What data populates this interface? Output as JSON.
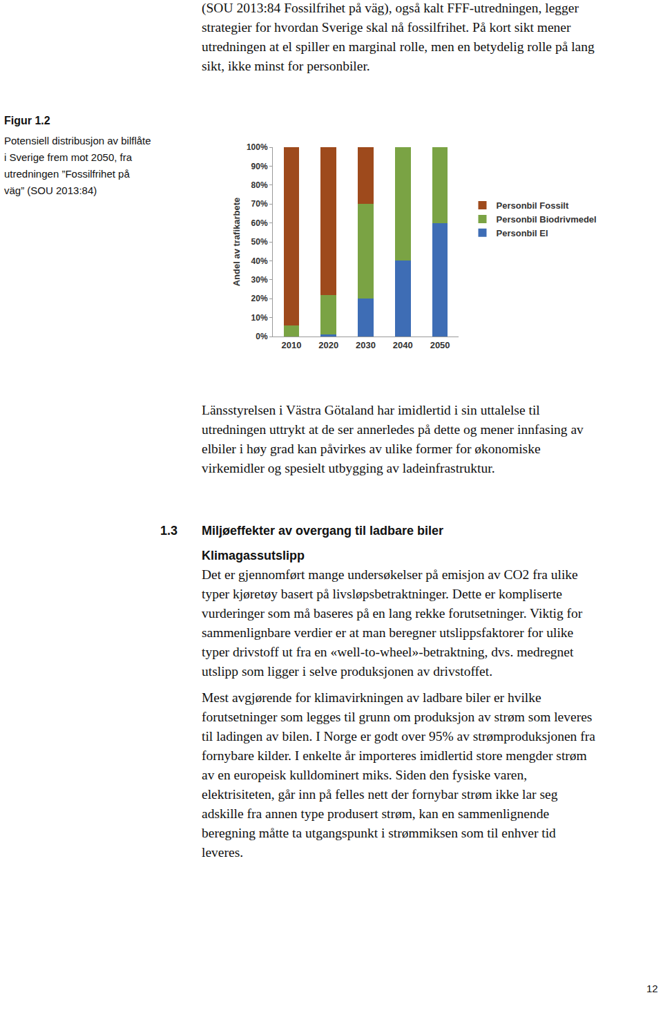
{
  "document": {
    "intro": [
      "(SOU 2013:84 Fossilfrihet på väg), også kalt FFF-utredningen, legger",
      "strategier for hvordan Sverige skal nå fossilfrihet. På kort sikt mener",
      "utredningen at el spiller en marginal rolle, men en betydelig rolle på lang",
      "sikt, ikke minst for personbiler."
    ],
    "figure": {
      "label": "Figur 1.2",
      "caption": [
        "Potensiell distribusjon av bilflåte",
        "i Sverige frem mot 2050, fra",
        "utredningen ”Fossilfrihet på",
        "väg” (SOU 2013:84)"
      ]
    },
    "paragraph": [
      "Länsstyrelsen i Västra Götaland har imidlertid i sin uttalelse til",
      "utredningen uttrykt at de ser annerledes på dette og mener innfasing av",
      "elbiler i høy grad kan påvirkes av ulike former for økonomiske",
      "virkemidler og spesielt utbygging av ladeinfrastruktur."
    ],
    "section": {
      "number": "1.3",
      "title": "Miljøeffekter av overgang til ladbare biler",
      "subheading": "Klimagassutslipp",
      "paragraphs": [
        [
          "Det er gjennomført mange undersøkelser på emisjon av CO2 fra ulike",
          "typer kjøretøy basert på livsløpsbetraktninger. Dette er kompliserte",
          "vurderinger som må baseres på en lang rekke forutsetninger. Viktig for",
          "sammenlignbare verdier er at man beregner utslippsfaktorer for ulike",
          "typer drivstoff ut fra en «well-to-wheel»-betraktning, dvs. medregnet",
          "utslipp som ligger i selve produksjonen av drivstoffet."
        ],
        [
          "Mest avgjørende for klimavirkningen av ladbare biler er hvilke",
          "forutsetninger som legges til grunn om produksjon av strøm som leveres",
          "til ladingen av bilen. I Norge er godt over 95% av strømproduksjonen fra",
          "fornybare kilder. I enkelte år importeres imidlertid store mengder strøm",
          "av en europeisk kulldominert miks. Siden den fysiske varen,",
          "elektrisiteten, går inn på felles nett der fornybar strøm ikke lar seg",
          "adskille fra annen type produsert strøm, kan en sammenlignende",
          "beregning måtte ta utgangspunkt i strømmiksen som til enhver tid",
          "leveres."
        ]
      ]
    },
    "page_number": "12"
  },
  "chart_data": {
    "type": "bar",
    "stacked": true,
    "y_label": "Andel av trafikarbete",
    "categories": [
      "2010",
      "2020",
      "2030",
      "2040",
      "2050"
    ],
    "series": [
      {
        "name": "Personbil El",
        "color": "#3e6db5",
        "values": [
          0,
          1,
          20,
          40,
          60
        ]
      },
      {
        "name": "Personbil Biodrivmedel",
        "color": "#7aa344",
        "values": [
          6,
          21,
          50,
          60,
          40
        ]
      },
      {
        "name": "Personbil Fossilt",
        "color": "#9e4a1c",
        "values": [
          94,
          78,
          30,
          0,
          0
        ]
      }
    ],
    "ylim": [
      0,
      100
    ],
    "yticks": [
      {
        "value": 0,
        "label": "0%"
      },
      {
        "value": 10,
        "label": "10%"
      },
      {
        "value": 20,
        "label": "20%"
      },
      {
        "value": 30,
        "label": "30%"
      },
      {
        "value": 40,
        "label": "40%"
      },
      {
        "value": 50,
        "label": "50%"
      },
      {
        "value": 60,
        "label": "60%"
      },
      {
        "value": 70,
        "label": "70%"
      },
      {
        "value": 80,
        "label": "80%"
      },
      {
        "value": 90,
        "label": "90%"
      },
      {
        "value": 100,
        "label": "100%"
      }
    ],
    "grid": false,
    "legend": "right"
  }
}
